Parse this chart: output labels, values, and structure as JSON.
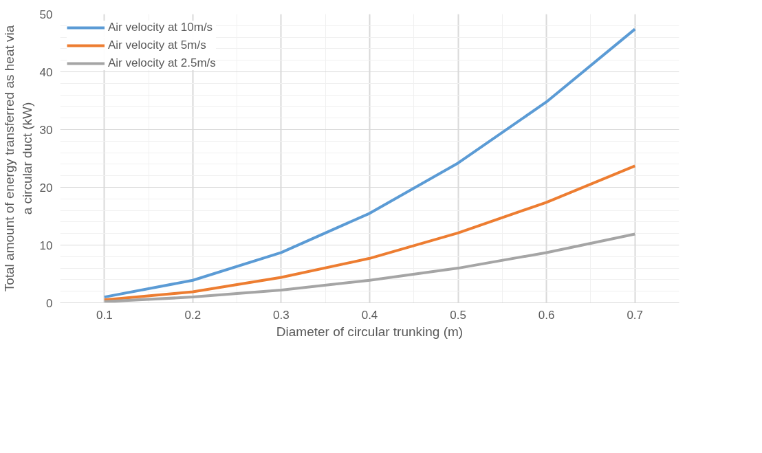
{
  "chart_data": {
    "type": "line",
    "xlabel": "Diameter of circular trunking (m)",
    "ylabel": "Total amount of energy transferred as heat via a circular duct (kW)",
    "x": [
      0.1,
      0.2,
      0.3,
      0.4,
      0.5,
      0.6,
      0.7
    ],
    "series": [
      {
        "name": "Air velocity at 10m/s",
        "color": "#5b9bd5",
        "values": [
          1.0,
          3.9,
          8.7,
          15.5,
          24.2,
          34.8,
          47.4
        ]
      },
      {
        "name": "Air velocity at 5m/s",
        "color": "#ed7d31",
        "values": [
          0.5,
          1.9,
          4.4,
          7.7,
          12.1,
          17.4,
          23.7
        ]
      },
      {
        "name": "Air velocity at 2.5m/s",
        "color": "#a5a5a5",
        "values": [
          0.2,
          1.0,
          2.2,
          3.9,
          6.0,
          8.7,
          11.9
        ]
      }
    ],
    "xlim": [
      0.05,
      0.75
    ],
    "xticks": [
      0.1,
      0.2,
      0.3,
      0.4,
      0.5,
      0.6,
      0.7
    ],
    "ylim": [
      0,
      50
    ],
    "yticks": [
      0,
      10,
      20,
      30,
      40,
      50
    ],
    "grid": true,
    "legend": "top left",
    "marker": "none",
    "line_style": "solid"
  }
}
